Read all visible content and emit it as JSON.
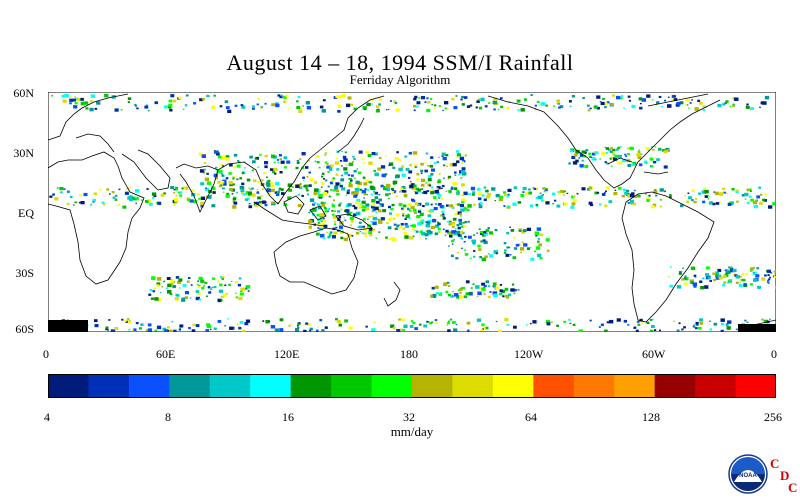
{
  "title": "August 14 – 18, 1994 SSM/I Rainfall",
  "subtitle": "Ferriday Algorithm",
  "map": {
    "lat_labels": [
      "60N",
      "30N",
      "EQ",
      "30S",
      "60S"
    ],
    "lon_labels": [
      "0",
      "60E",
      "120E",
      "180",
      "120W",
      "60W",
      "0"
    ],
    "lat_range": [
      -60,
      60
    ],
    "lon_range": [
      0,
      360
    ],
    "coastline_color": "#000000",
    "background": "#ffffff"
  },
  "colorbar": {
    "colors": [
      "#001c7a",
      "#0030b8",
      "#0a50ff",
      "#009898",
      "#00c8c8",
      "#00ffff",
      "#009600",
      "#00c800",
      "#00ff00",
      "#b4b400",
      "#dcdc00",
      "#ffff00",
      "#ff5000",
      "#ff7800",
      "#ffa000",
      "#960000",
      "#c80000",
      "#ff0000"
    ],
    "tick_labels": [
      "4",
      "8",
      "16",
      "32",
      "64",
      "128",
      "256"
    ],
    "units": "mm/day"
  },
  "logo": {
    "noaa_text": "NOAA",
    "cdc_letters": [
      "C",
      "D",
      "C"
    ]
  }
}
